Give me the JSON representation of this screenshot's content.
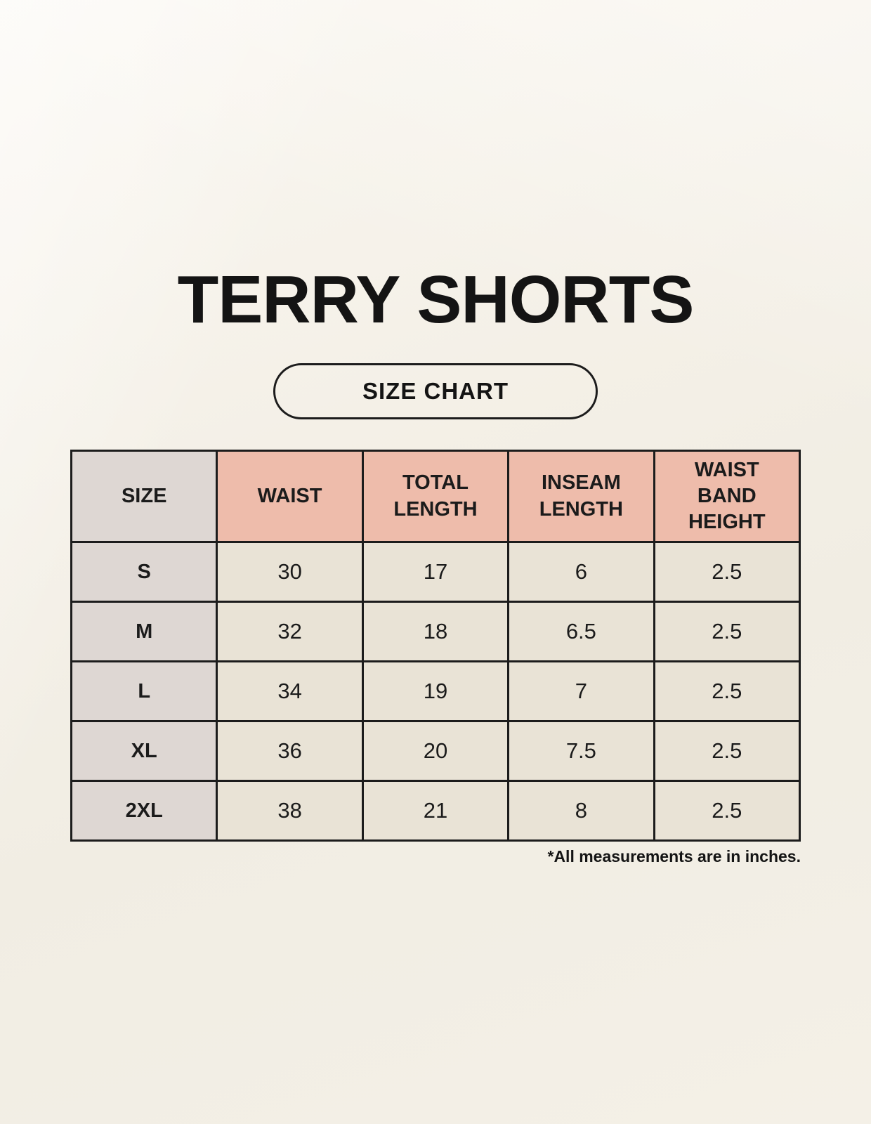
{
  "title": "TERRY SHORTS",
  "badge_label": "SIZE CHART",
  "footnote": "*All measurements are in inches.",
  "colors": {
    "background_cream": "#f3efe6",
    "header_salmon": "#eebcab",
    "size_column_gray": "#ded7d3",
    "cell_cream": "#e9e3d6",
    "border_black": "#1c1c1c",
    "text_black": "#141414"
  },
  "chart_data": {
    "type": "table",
    "title": "TERRY SHORTS",
    "subtitle": "SIZE CHART",
    "unit_note": "*All measurements are in inches.",
    "columns": [
      "SIZE",
      "WAIST",
      "TOTAL LENGTH",
      "INSEAM LENGTH",
      "WAIST BAND HEIGHT"
    ],
    "rows": [
      [
        "S",
        "30",
        "17",
        "6",
        "2.5"
      ],
      [
        "M",
        "32",
        "18",
        "6.5",
        "2.5"
      ],
      [
        "L",
        "34",
        "19",
        "7",
        "2.5"
      ],
      [
        "XL",
        "36",
        "20",
        "7.5",
        "2.5"
      ],
      [
        "2XL",
        "38",
        "21",
        "8",
        "2.5"
      ]
    ]
  }
}
